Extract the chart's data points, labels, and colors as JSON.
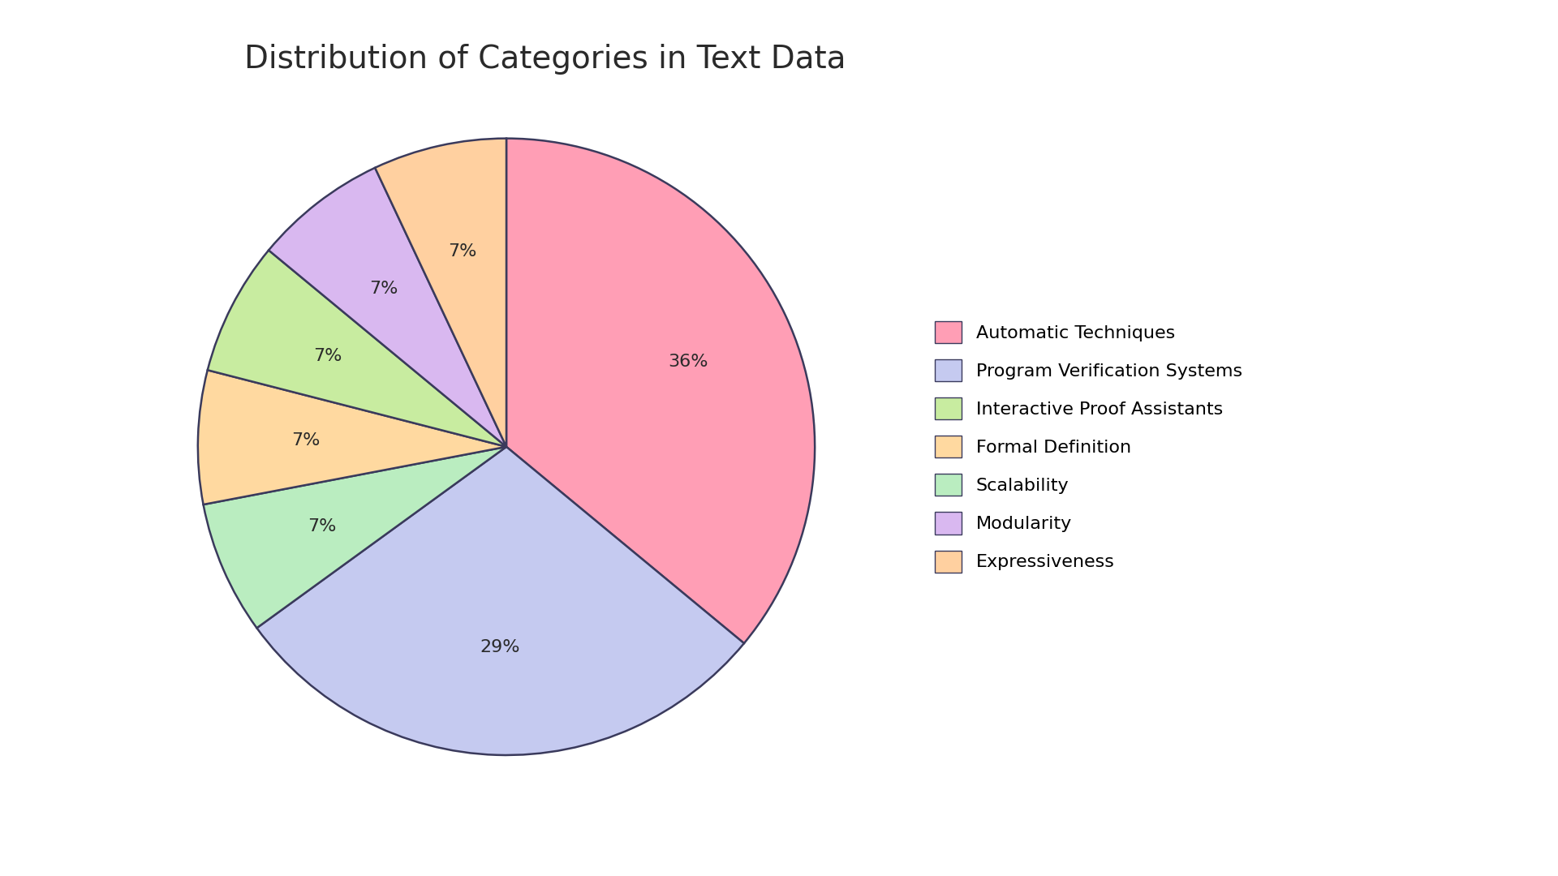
{
  "title": "Distribution of Categories in Text Data",
  "legend_labels": [
    "Automatic Techniques",
    "Program Verification Systems",
    "Interactive Proof Assistants",
    "Formal Definition",
    "Scalability",
    "Modularity",
    "Expressiveness"
  ],
  "legend_colors": [
    "#FF9EB5",
    "#C5CAF0",
    "#C8ECA0",
    "#FFD9A0",
    "#BAEDC0",
    "#D9B8F0",
    "#FFD0A0"
  ],
  "plot_labels": [
    "Automatic Techniques",
    "Program Verification Systems",
    "Scalability",
    "Formal Definition",
    "Interactive Proof Assistants",
    "Modularity",
    "Expressiveness"
  ],
  "plot_values": [
    36,
    29,
    7,
    7,
    7,
    7,
    7
  ],
  "plot_colors": [
    "#FF9EB5",
    "#C5CAF0",
    "#BAEDC0",
    "#FFD9A0",
    "#C8ECA0",
    "#D9B8F0",
    "#FFD0A0"
  ],
  "edge_color": "#3A3A5C",
  "background_color": "#FFFFFF",
  "title_fontsize": 28,
  "autopct_fontsize": 16,
  "legend_fontsize": 16,
  "startangle": 90
}
